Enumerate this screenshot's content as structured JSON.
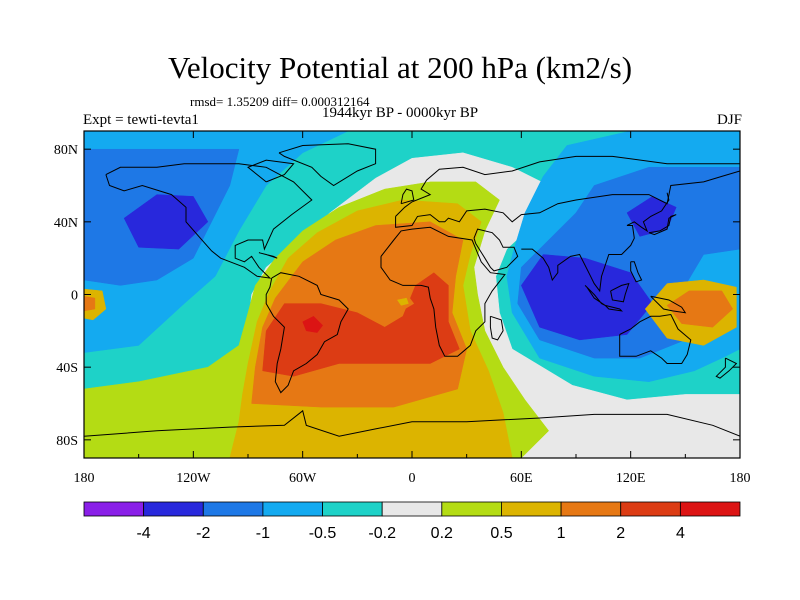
{
  "chart_data": {
    "type": "heatmap",
    "title": "Velocity Potential at 200 hPa (km2/s)",
    "stats_label": "rmsd= 1.35209 diff= 0.000312164",
    "period_label": "1944kyr BP - 0000kyr BP",
    "experiment_label": "Expt = tewti-tevta1",
    "season_label": "DJF",
    "x_ticks": [
      "180",
      "120W",
      "60W",
      "0",
      "60E",
      "120E",
      "180"
    ],
    "x_tick_values": [
      -180,
      -120,
      -60,
      0,
      60,
      120,
      180
    ],
    "y_ticks": [
      "80N",
      "40N",
      "0",
      "40S",
      "80S"
    ],
    "y_tick_values": [
      80,
      40,
      0,
      -40,
      -80
    ],
    "xlim": [
      -180,
      180
    ],
    "ylim": [
      -90,
      90
    ],
    "colorbar_labels": [
      "-4",
      "-2",
      "-1",
      "-0.5",
      "-0.2",
      "0.2",
      "0.5",
      "1",
      "2",
      "4"
    ],
    "colorbar_colors": [
      "#8a1fe8",
      "#2828dc",
      "#1e78e6",
      "#14aaf0",
      "#1ed2c8",
      "#e8e8e8",
      "#b4dc14",
      "#dcb400",
      "#e67814",
      "#dc3c14",
      "#dc1414"
    ],
    "regions": [
      {
        "name": "background",
        "color": "#1ed2c8",
        "points": [
          [
            -180,
            90
          ],
          [
            180,
            90
          ],
          [
            180,
            -90
          ],
          [
            -180,
            -90
          ]
        ]
      },
      {
        "name": "positive-envelope",
        "color": "#e8e8e8",
        "points": [
          [
            -180,
            -68
          ],
          [
            -150,
            -62
          ],
          [
            -118,
            -52
          ],
          [
            -98,
            -40
          ],
          [
            -90,
            -20
          ],
          [
            -88,
            0
          ],
          [
            -80,
            15
          ],
          [
            -62,
            30
          ],
          [
            -45,
            45
          ],
          [
            -20,
            64
          ],
          [
            0,
            75
          ],
          [
            28,
            78
          ],
          [
            55,
            70
          ],
          [
            75,
            60
          ],
          [
            68,
            40
          ],
          [
            52,
            25
          ],
          [
            46,
            10
          ],
          [
            48,
            -10
          ],
          [
            55,
            -30
          ],
          [
            88,
            -50
          ],
          [
            118,
            -58
          ],
          [
            150,
            -55
          ],
          [
            180,
            -55
          ],
          [
            180,
            -90
          ],
          [
            -180,
            -90
          ]
        ]
      },
      {
        "name": "positive-0.2",
        "color": "#b4dc14",
        "points": [
          [
            -180,
            -52
          ],
          [
            -150,
            -48
          ],
          [
            -112,
            -40
          ],
          [
            -95,
            -28
          ],
          [
            -90,
            -10
          ],
          [
            -86,
            5
          ],
          [
            -75,
            20
          ],
          [
            -60,
            35
          ],
          [
            -40,
            48
          ],
          [
            -15,
            58
          ],
          [
            10,
            62
          ],
          [
            35,
            62
          ],
          [
            48,
            52
          ],
          [
            40,
            35
          ],
          [
            34,
            15
          ],
          [
            36,
            0
          ],
          [
            40,
            -20
          ],
          [
            50,
            -40
          ],
          [
            62,
            -58
          ],
          [
            75,
            -75
          ],
          [
            60,
            -90
          ],
          [
            -180,
            -90
          ]
        ]
      },
      {
        "name": "positive-0.5",
        "color": "#dcb400",
        "points": [
          [
            -100,
            -90
          ],
          [
            -95,
            -70
          ],
          [
            -93,
            -55
          ],
          [
            -90,
            -38
          ],
          [
            -85,
            -15
          ],
          [
            -78,
            2
          ],
          [
            -68,
            20
          ],
          [
            -52,
            34
          ],
          [
            -30,
            46
          ],
          [
            -5,
            52
          ],
          [
            25,
            50
          ],
          [
            38,
            40
          ],
          [
            32,
            22
          ],
          [
            28,
            5
          ],
          [
            32,
            -20
          ],
          [
            42,
            -42
          ],
          [
            50,
            -65
          ],
          [
            55,
            -90
          ]
        ]
      },
      {
        "name": "positive-1",
        "color": "#e67814",
        "points": [
          [
            -88,
            -60
          ],
          [
            -86,
            -40
          ],
          [
            -82,
            -18
          ],
          [
            -75,
            -2
          ],
          [
            -60,
            18
          ],
          [
            -42,
            30
          ],
          [
            -20,
            38
          ],
          [
            10,
            40
          ],
          [
            28,
            30
          ],
          [
            24,
            10
          ],
          [
            22,
            -10
          ],
          [
            30,
            -30
          ],
          [
            25,
            -52
          ],
          [
            -10,
            -62
          ],
          [
            -50,
            -62
          ]
        ]
      },
      {
        "name": "positive-2",
        "color": "#dc3c14",
        "points": [
          [
            -82,
            -42
          ],
          [
            -80,
            -20
          ],
          [
            -70,
            -5
          ],
          [
            -50,
            -5
          ],
          [
            -30,
            -10
          ],
          [
            -15,
            -18
          ],
          [
            -5,
            -12
          ],
          [
            2,
            5
          ],
          [
            12,
            12
          ],
          [
            20,
            5
          ],
          [
            20,
            -15
          ],
          [
            26,
            -30
          ],
          [
            10,
            -38
          ],
          [
            -15,
            -38
          ],
          [
            -40,
            -38
          ],
          [
            -65,
            -45
          ]
        ]
      },
      {
        "name": "positive-4",
        "color": "#dc1414",
        "points": [
          [
            -60,
            -15
          ],
          [
            -54,
            -12
          ],
          [
            -49,
            -17
          ],
          [
            -52,
            -21
          ],
          [
            -58,
            -20
          ]
        ]
      },
      {
        "name": "positive-2-pocket",
        "color": "#e67814",
        "points": [
          [
            -10,
            -2
          ],
          [
            -2,
            -1
          ],
          [
            1,
            -5
          ],
          [
            -4,
            -8
          ],
          [
            -10,
            -6
          ]
        ]
      },
      {
        "name": "positive-0.5-pocket",
        "color": "#dcb400",
        "points": [
          [
            -8,
            -3
          ],
          [
            -3,
            -2
          ],
          [
            -2,
            -5
          ],
          [
            -6,
            -6
          ]
        ]
      },
      {
        "name": "negative-0.5-band",
        "color": "#14aaf0",
        "points": [
          [
            -180,
            90
          ],
          [
            -35,
            90
          ],
          [
            -60,
            78
          ],
          [
            -80,
            60
          ],
          [
            -95,
            35
          ],
          [
            -108,
            10
          ],
          [
            -125,
            -5
          ],
          [
            -150,
            -28
          ],
          [
            -180,
            -32
          ]
        ]
      },
      {
        "name": "negative-1-band",
        "color": "#1e78e6",
        "points": [
          [
            -180,
            80
          ],
          [
            -95,
            80
          ],
          [
            -100,
            60
          ],
          [
            -110,
            40
          ],
          [
            -120,
            20
          ],
          [
            -140,
            8
          ],
          [
            -160,
            5
          ],
          [
            -180,
            8
          ]
        ]
      },
      {
        "name": "negative-2-core",
        "color": "#2828dc",
        "points": [
          [
            -158,
            42
          ],
          [
            -140,
            55
          ],
          [
            -120,
            54
          ],
          [
            -112,
            40
          ],
          [
            -128,
            25
          ],
          [
            -150,
            26
          ]
        ]
      },
      {
        "name": "east-negative-0.5",
        "color": "#14aaf0",
        "points": [
          [
            180,
            90
          ],
          [
            120,
            90
          ],
          [
            85,
            82
          ],
          [
            72,
            65
          ],
          [
            62,
            45
          ],
          [
            56,
            25
          ],
          [
            52,
            10
          ],
          [
            55,
            -10
          ],
          [
            70,
            -35
          ],
          [
            100,
            -45
          ],
          [
            130,
            -48
          ],
          [
            155,
            -42
          ],
          [
            170,
            -35
          ],
          [
            180,
            -30
          ]
        ]
      },
      {
        "name": "east-negative-1",
        "color": "#1e78e6",
        "points": [
          [
            180,
            70
          ],
          [
            130,
            70
          ],
          [
            100,
            60
          ],
          [
            90,
            45
          ],
          [
            75,
            30
          ],
          [
            60,
            15
          ],
          [
            58,
            -5
          ],
          [
            70,
            -25
          ],
          [
            100,
            -35
          ],
          [
            125,
            -35
          ],
          [
            150,
            -25
          ],
          [
            160,
            -10
          ],
          [
            150,
            5
          ],
          [
            160,
            22
          ],
          [
            180,
            25
          ]
        ]
      },
      {
        "name": "east-negative-2-core",
        "color": "#2828dc",
        "points": [
          [
            60,
            5
          ],
          [
            72,
            22
          ],
          [
            95,
            20
          ],
          [
            120,
            12
          ],
          [
            132,
            -5
          ],
          [
            118,
            -22
          ],
          [
            92,
            -25
          ],
          [
            70,
            -18
          ]
        ]
      },
      {
        "name": "east-negative-2-north",
        "color": "#2828dc",
        "points": [
          [
            118,
            45
          ],
          [
            132,
            54
          ],
          [
            145,
            48
          ],
          [
            140,
            36
          ],
          [
            125,
            32
          ]
        ]
      },
      {
        "name": "west-pacific-positive",
        "color": "#dcb400",
        "points": [
          [
            128,
            -8
          ],
          [
            140,
            6
          ],
          [
            160,
            8
          ],
          [
            178,
            4
          ],
          [
            178,
            -18
          ],
          [
            160,
            -28
          ],
          [
            140,
            -24
          ]
        ]
      },
      {
        "name": "west-pacific-positive-1",
        "color": "#e67814",
        "points": [
          [
            140,
            -6
          ],
          [
            152,
            2
          ],
          [
            170,
            2
          ],
          [
            176,
            -8
          ],
          [
            165,
            -18
          ],
          [
            148,
            -16
          ]
        ]
      },
      {
        "name": "west-edge-positive",
        "color": "#dcb400",
        "points": [
          [
            -180,
            3
          ],
          [
            -170,
            2
          ],
          [
            -168,
            -8
          ],
          [
            -175,
            -14
          ],
          [
            -180,
            -13
          ]
        ]
      },
      {
        "name": "west-edge-positive-1",
        "color": "#e67814",
        "points": [
          [
            -180,
            -1
          ],
          [
            -174,
            -2
          ],
          [
            -174,
            -8
          ],
          [
            -180,
            -9
          ]
        ]
      }
    ]
  }
}
